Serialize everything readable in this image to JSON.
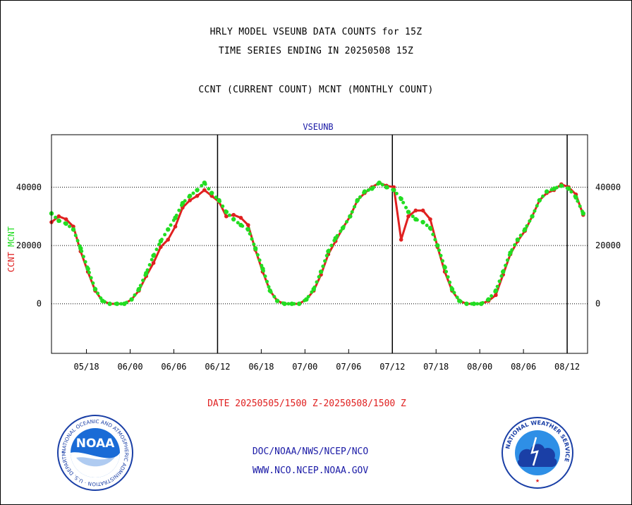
{
  "header": {
    "title_line1": "HRLY MODEL VSEUNB DATA COUNTS for 15Z",
    "title_line2": "TIME SERIES ENDING IN 20250508 15Z",
    "title_line3": "CCNT (CURRENT COUNT) MCNT (MONTHLY COUNT)"
  },
  "footer": {
    "date_range": "DATE 20250505/1500 Z-20250508/1500 Z",
    "org_path": "DOC/NOAA/NWS/NCEP/NCO",
    "website": "WWW.NCO.NCEP.NOAA.GOV",
    "noaa_logo_text": "NOAA",
    "noaa_ring_text": "NATIONAL OCEANIC AND ATMOSPHERIC ADMINISTRATION · U.S. DEPARTMENT OF COMMERCE ·",
    "nws_ring_text": "NATIONAL WEATHER SERVICE"
  },
  "colors": {
    "ccnt": "#e02020",
    "mcnt": "#22dd22",
    "footer_blue": "#1a1aa6",
    "plot_title": "#1a1aa6"
  },
  "chart_data": {
    "type": "line",
    "title": "VSEUNB",
    "ylabel_parts": [
      {
        "text": "CCNT",
        "color": "#e02020"
      },
      {
        "text": "MCNT",
        "color": "#22dd22"
      }
    ],
    "xlim": [
      -4.8,
      68.8
    ],
    "ylim": [
      -17000,
      58000
    ],
    "yticks": [
      0,
      20000,
      40000
    ],
    "ytick_labels": [
      "0",
      "20000",
      "40000"
    ],
    "xticks": [
      0,
      6,
      12,
      18,
      24,
      30,
      36,
      42,
      48,
      54,
      60,
      66
    ],
    "xtick_labels": [
      "05/18",
      "06/00",
      "06/06",
      "06/12",
      "06/18",
      "07/00",
      "07/06",
      "07/12",
      "07/18",
      "08/00",
      "08/06",
      "08/12"
    ],
    "day_lines": [
      18,
      42,
      66
    ],
    "grid_y": true,
    "series": [
      {
        "name": "CCNT",
        "color": "#e02020",
        "style": "solid",
        "x": [
          -4.8,
          -3.8,
          -2.8,
          -1.8,
          -0.8,
          0.2,
          1.2,
          2.2,
          3.2,
          4.2,
          5.2,
          6.2,
          7.2,
          8.2,
          9.2,
          10.2,
          11.2,
          12.2,
          13.2,
          14.2,
          15.2,
          16.2,
          17.2,
          18.2,
          19.2,
          20.2,
          21.2,
          22.2,
          23.2,
          24.2,
          25.2,
          26.2,
          27.2,
          28.2,
          29.2,
          30.2,
          31.2,
          32.2,
          33.2,
          34.2,
          35.2,
          36.2,
          37.2,
          38.2,
          39.2,
          40.2,
          41.2,
          42.2,
          43.2,
          44.2,
          45.2,
          46.2,
          47.2,
          48.2,
          49.2,
          50.2,
          51.2,
          52.2,
          53.2,
          54.2,
          55.2,
          56.2,
          57.2,
          58.2,
          59.2,
          60.2,
          61.2,
          62.2,
          63.2,
          64.2,
          65.2,
          66.2,
          67.2,
          68.2
        ],
        "y": [
          28000,
          30000,
          29000,
          26500,
          18000,
          11000,
          4500,
          1000,
          0,
          0,
          0,
          1500,
          4500,
          9500,
          14000,
          19500,
          22000,
          26500,
          33000,
          35500,
          37000,
          39000,
          37000,
          35000,
          30000,
          30500,
          29500,
          27000,
          18500,
          11000,
          4500,
          1000,
          0,
          0,
          0,
          1500,
          4500,
          10000,
          17000,
          21500,
          26000,
          30000,
          35500,
          38000,
          40000,
          41500,
          40500,
          40000,
          22000,
          30000,
          32000,
          32000,
          29000,
          19500,
          11000,
          4500,
          1000,
          0,
          0,
          0,
          1000,
          3000,
          10000,
          17000,
          21500,
          25000,
          30000,
          35500,
          38000,
          39000,
          41000,
          40000,
          37500,
          30500
        ]
      },
      {
        "name": "MCNT",
        "color": "#22dd22",
        "style": "dotted",
        "x": [
          -4.8,
          -3.8,
          -2.8,
          -1.8,
          -0.8,
          0.2,
          1.2,
          2.2,
          3.2,
          4.2,
          5.2,
          6.2,
          7.2,
          8.2,
          9.2,
          10.2,
          11.2,
          12.2,
          13.2,
          14.2,
          15.2,
          16.2,
          17.2,
          18.2,
          19.2,
          20.2,
          21.2,
          22.2,
          23.2,
          24.2,
          25.2,
          26.2,
          27.2,
          28.2,
          29.2,
          30.2,
          31.2,
          32.2,
          33.2,
          34.2,
          35.2,
          36.2,
          37.2,
          38.2,
          39.2,
          40.2,
          41.2,
          42.2,
          43.2,
          44.2,
          45.2,
          46.2,
          47.2,
          48.2,
          49.2,
          50.2,
          51.2,
          52.2,
          53.2,
          54.2,
          55.2,
          56.2,
          57.2,
          58.2,
          59.2,
          60.2,
          61.2,
          62.2,
          63.2,
          64.2,
          65.2,
          66.2,
          67.2,
          68.2
        ],
        "y": [
          31000,
          28500,
          27500,
          25500,
          19000,
          12000,
          5000,
          1000,
          0,
          0,
          0,
          1500,
          5000,
          10500,
          16500,
          21500,
          25500,
          29500,
          34500,
          37000,
          39000,
          41500,
          38000,
          35500,
          31500,
          29000,
          27000,
          25500,
          19000,
          12000,
          4500,
          1000,
          0,
          0,
          0,
          1500,
          5000,
          11000,
          18000,
          22500,
          26000,
          30000,
          35500,
          38500,
          39500,
          41500,
          40000,
          39000,
          36000,
          31500,
          29000,
          28000,
          26000,
          20000,
          12500,
          5000,
          1000,
          0,
          0,
          0,
          1500,
          4500,
          11000,
          17500,
          22000,
          25500,
          30000,
          35500,
          38500,
          39500,
          40500,
          39500,
          36500,
          31000
        ]
      }
    ]
  }
}
